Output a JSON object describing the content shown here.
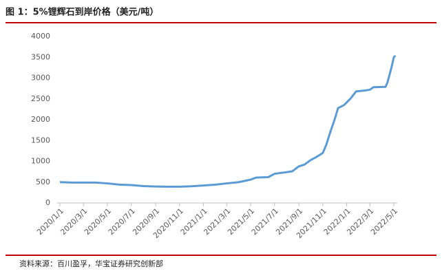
{
  "chart_data": {
    "type": "line",
    "title": "图 1：5%锂辉石到岸价格（美元/吨）",
    "source": "资料来源：百川盈孚，华宝证券研究创新部",
    "x": [
      "2020/1/1",
      "2020/2/1",
      "2020/4/1",
      "2020/5/1",
      "2020/6/1",
      "2020/7/1",
      "2020/8/1",
      "2020/9/1",
      "2020/10/1",
      "2020/11/1",
      "2020/12/1",
      "2021/1/1",
      "2021/2/1",
      "2021/3/1",
      "2021/4/1",
      "2021/5/1",
      "2021/5/15",
      "2021/6/15",
      "2021/7/1",
      "2021/7/15",
      "2021/8/1",
      "2021/8/15",
      "2021/9/1",
      "2021/9/15",
      "2021/10/1",
      "2021/10/15",
      "2021/11/1",
      "2021/11/10",
      "2021/11/20",
      "2021/12/1",
      "2021/12/10",
      "2021/12/25",
      "2022/1/10",
      "2022/1/25",
      "2022/2/15",
      "2022/3/1",
      "2022/3/10",
      "2022/4/10",
      "2022/4/15",
      "2022/4/25",
      "2022/5/1",
      "2022/5/5"
    ],
    "series": [
      {
        "name": "5%锂辉石到岸价格",
        "color": "#5b9bd5",
        "values": [
          500,
          490,
          490,
          470,
          440,
          430,
          405,
          395,
          390,
          390,
          400,
          420,
          440,
          470,
          500,
          560,
          610,
          620,
          700,
          720,
          740,
          760,
          880,
          920,
          1030,
          1100,
          1200,
          1400,
          1700,
          2000,
          2280,
          2350,
          2500,
          2680,
          2700,
          2720,
          2780,
          2790,
          2900,
          3250,
          3500,
          3540
        ]
      }
    ],
    "xlim": [
      "2020/1/1",
      "2022/5/1"
    ],
    "xticks": [
      "2020/1/1",
      "2020/3/1",
      "2020/5/1",
      "2020/7/1",
      "2020/9/1",
      "2020/11/1",
      "2021/1/1",
      "2021/3/1",
      "2021/5/1",
      "2021/7/1",
      "2021/9/1",
      "2021/11/1",
      "2022/1/1",
      "2022/3/1",
      "2022/5/1"
    ],
    "ylim": [
      0,
      4000
    ],
    "yticks": [
      0,
      500,
      1000,
      1500,
      2000,
      2500,
      3000,
      3500,
      4000
    ],
    "grid": false
  }
}
